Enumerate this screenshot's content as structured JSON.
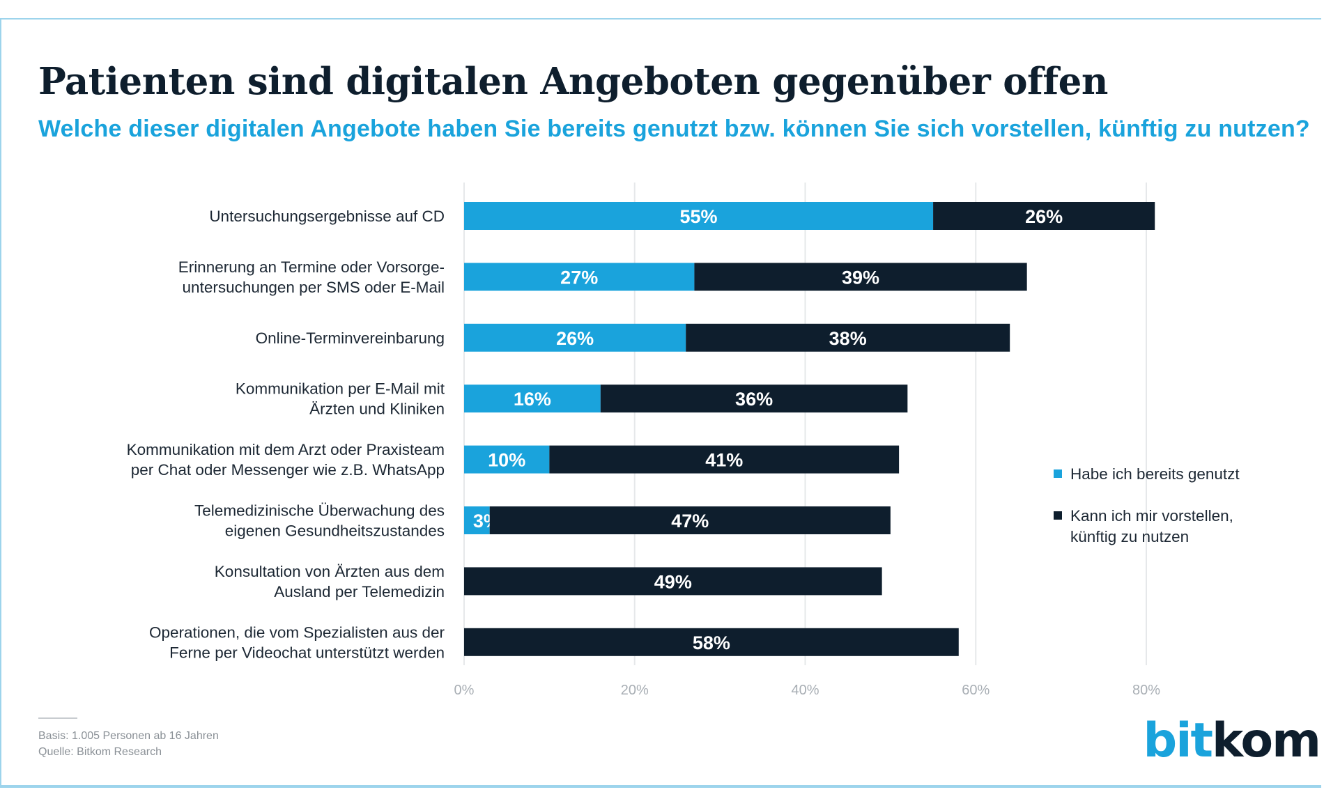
{
  "title": "Patienten sind digitalen Angeboten gegenüber offen",
  "subtitle": "Welche dieser digitalen Angebote haben Sie bereits genutzt bzw. können Sie sich vorstellen, künftig zu nutzen?",
  "colors": {
    "used": "#1aa3dc",
    "future": "#0e1e2d",
    "grid": "#e6e8ea"
  },
  "chart_data": {
    "type": "bar",
    "orientation": "horizontal",
    "stacked": true,
    "title": "Patienten sind digitalen Angeboten gegenüber offen",
    "xlim": [
      0,
      80
    ],
    "x_ticks": [
      0,
      20,
      40,
      60,
      80
    ],
    "x_tick_labels": [
      "0%",
      "20%",
      "40%",
      "60%",
      "80%"
    ],
    "grid": true,
    "legend_position": "right",
    "categories": [
      [
        "Untersuchungsergebnisse auf CD"
      ],
      [
        "Erinnerung an Termine oder Vorsorge-",
        "untersuchungen per SMS oder E-Mail"
      ],
      [
        "Online-Terminvereinbarung"
      ],
      [
        "Kommunikation per E-Mail mit",
        "Ärzten und Kliniken"
      ],
      [
        "Kommunikation mit dem Arzt oder Praxisteam",
        "per Chat oder Messenger wie z.B. WhatsApp"
      ],
      [
        "Telemedizinische Überwachung des",
        "eigenen Gesundheitszustandes"
      ],
      [
        "Konsultation von Ärzten aus dem",
        "Ausland per Telemedizin"
      ],
      [
        "Operationen, die  vom Spezialisten aus der",
        "Ferne per Videochat unterstützt werden"
      ]
    ],
    "series": [
      {
        "name": "Habe ich bereits genutzt",
        "values": [
          55,
          27,
          26,
          16,
          10,
          3,
          0,
          0
        ],
        "labels": [
          "55%",
          "27%",
          "26%",
          "16%",
          "10%",
          "3%",
          "",
          ""
        ]
      },
      {
        "name": "Kann ich mir vorstellen, künftig zu nutzen",
        "values": [
          26,
          39,
          38,
          36,
          41,
          47,
          49,
          58
        ],
        "labels": [
          "26%",
          "39%",
          "38%",
          "36%",
          "41%",
          "47%",
          "49%",
          "58%"
        ]
      }
    ]
  },
  "legend": {
    "used": "Habe ich bereits genutzt",
    "future_line1": "Kann ich mir vorstellen,",
    "future_line2": "künftig zu nutzen"
  },
  "footer": {
    "basis": "Basis: 1.005 Personen ab 16 Jahren",
    "source": "Quelle: Bitkom Research"
  },
  "logo": {
    "part1": "bit",
    "part2": "kom"
  }
}
